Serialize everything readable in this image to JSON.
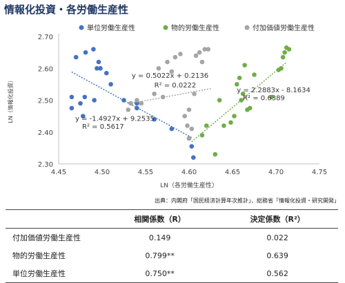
{
  "title": "情報化投資・各労働生産性",
  "source_note": "出典：内閣府「国民経済計算年次推計」、総務省「情報化投資・研究開発」",
  "chart_data": {
    "type": "scatter",
    "xlabel": "LN（各労働生産性）",
    "ylabel": "LN（情報化投資）",
    "xlim": [
      4.45,
      4.75
    ],
    "ylim": [
      2.3,
      2.7
    ],
    "x_ticks": [
      "4.45",
      "4.50",
      "4.55",
      "4.60",
      "4.65",
      "4.70",
      "4.75"
    ],
    "y_ticks": [
      "2.30",
      "2.40",
      "2.50",
      "2.60",
      "2.70"
    ],
    "grid": "none",
    "legend_position": "top",
    "series": [
      {
        "name": "単位労働生産性",
        "color": "#4472c4",
        "points": [
          [
            4.465,
            2.51
          ],
          [
            4.465,
            2.475
          ],
          [
            4.47,
            2.635
          ],
          [
            4.475,
            2.49
          ],
          [
            4.478,
            2.45
          ],
          [
            4.48,
            2.51
          ],
          [
            4.481,
            2.65
          ],
          [
            4.49,
            2.66
          ],
          [
            4.491,
            2.5
          ],
          [
            4.494,
            2.6
          ],
          [
            4.496,
            2.62
          ],
          [
            4.498,
            2.6
          ],
          [
            4.505,
            2.585
          ],
          [
            4.51,
            2.55
          ],
          [
            4.525,
            2.5
          ],
          [
            4.54,
            2.475
          ],
          [
            4.54,
            2.49
          ],
          [
            4.56,
            2.44
          ],
          [
            4.58,
            2.41
          ],
          [
            4.6,
            2.38
          ],
          [
            4.603,
            2.355
          ],
          [
            4.605,
            2.32
          ]
        ],
        "trendline": {
          "slope": -1.4927,
          "intercept": 9.2535,
          "x_range": [
            4.465,
            4.603
          ]
        },
        "equation": "y = -1.4927x + 9.2535",
        "r2_label": "R² = 0.5617"
      },
      {
        "name": "物的労働生産性",
        "color": "#70ad47",
        "points": [
          [
            4.615,
            2.39
          ],
          [
            4.62,
            2.42
          ],
          [
            4.63,
            2.33
          ],
          [
            4.635,
            2.5
          ],
          [
            4.64,
            2.42
          ],
          [
            4.648,
            2.43
          ],
          [
            4.652,
            2.45
          ],
          [
            4.655,
            2.55
          ],
          [
            4.658,
            2.57
          ],
          [
            4.66,
            2.5
          ],
          [
            4.662,
            2.52
          ],
          [
            4.664,
            2.61
          ],
          [
            4.667,
            2.47
          ],
          [
            4.67,
            2.475
          ],
          [
            4.675,
            2.58
          ],
          [
            4.695,
            2.51
          ],
          [
            4.703,
            2.595
          ],
          [
            4.706,
            2.6
          ],
          [
            4.708,
            2.635
          ],
          [
            4.71,
            2.65
          ],
          [
            4.712,
            2.665
          ],
          [
            4.715,
            2.66
          ]
        ],
        "trendline": {
          "slope": 2.2883,
          "intercept": -8.1634,
          "x_range": [
            4.603,
            4.712
          ]
        },
        "equation": "y = 2.2883x - 8.1634",
        "r2_label": "R² = 0.6389"
      },
      {
        "name": "付加価値労働生産性",
        "color": "#a5a5a5",
        "points": [
          [
            4.53,
            2.47
          ],
          [
            4.533,
            2.49
          ],
          [
            4.54,
            2.5
          ],
          [
            4.545,
            2.49
          ],
          [
            4.56,
            2.52
          ],
          [
            4.565,
            2.6
          ],
          [
            4.57,
            2.51
          ],
          [
            4.575,
            2.62
          ],
          [
            4.58,
            2.59
          ],
          [
            4.584,
            2.635
          ],
          [
            4.59,
            2.645
          ],
          [
            4.595,
            2.45
          ],
          [
            4.598,
            2.42
          ],
          [
            4.6,
            2.38
          ],
          [
            4.6,
            2.47
          ],
          [
            4.603,
            2.41
          ],
          [
            4.606,
            2.52
          ],
          [
            4.608,
            2.64
          ],
          [
            4.612,
            2.65
          ],
          [
            4.615,
            2.62
          ],
          [
            4.618,
            2.66
          ],
          [
            4.622,
            2.66
          ]
        ],
        "trendline": {
          "slope": 0.5022,
          "intercept": 0.2136,
          "x_range": [
            4.53,
            4.625
          ]
        },
        "equation": "y = 0.5022x + 0.2136",
        "r2_label": "R² = 0.0222"
      }
    ]
  },
  "table": {
    "headers": [
      "",
      "相関係数（R）",
      "決定係数（R²）"
    ],
    "rows": [
      {
        "name": "付加価値労働生産性",
        "r": "0.149",
        "r2": "0.022"
      },
      {
        "name": "物的労働生産性",
        "r": "0.799**",
        "r2": "0.639"
      },
      {
        "name": "単位労働生産性",
        "r": "0.750**",
        "r2": "0.562"
      }
    ]
  }
}
